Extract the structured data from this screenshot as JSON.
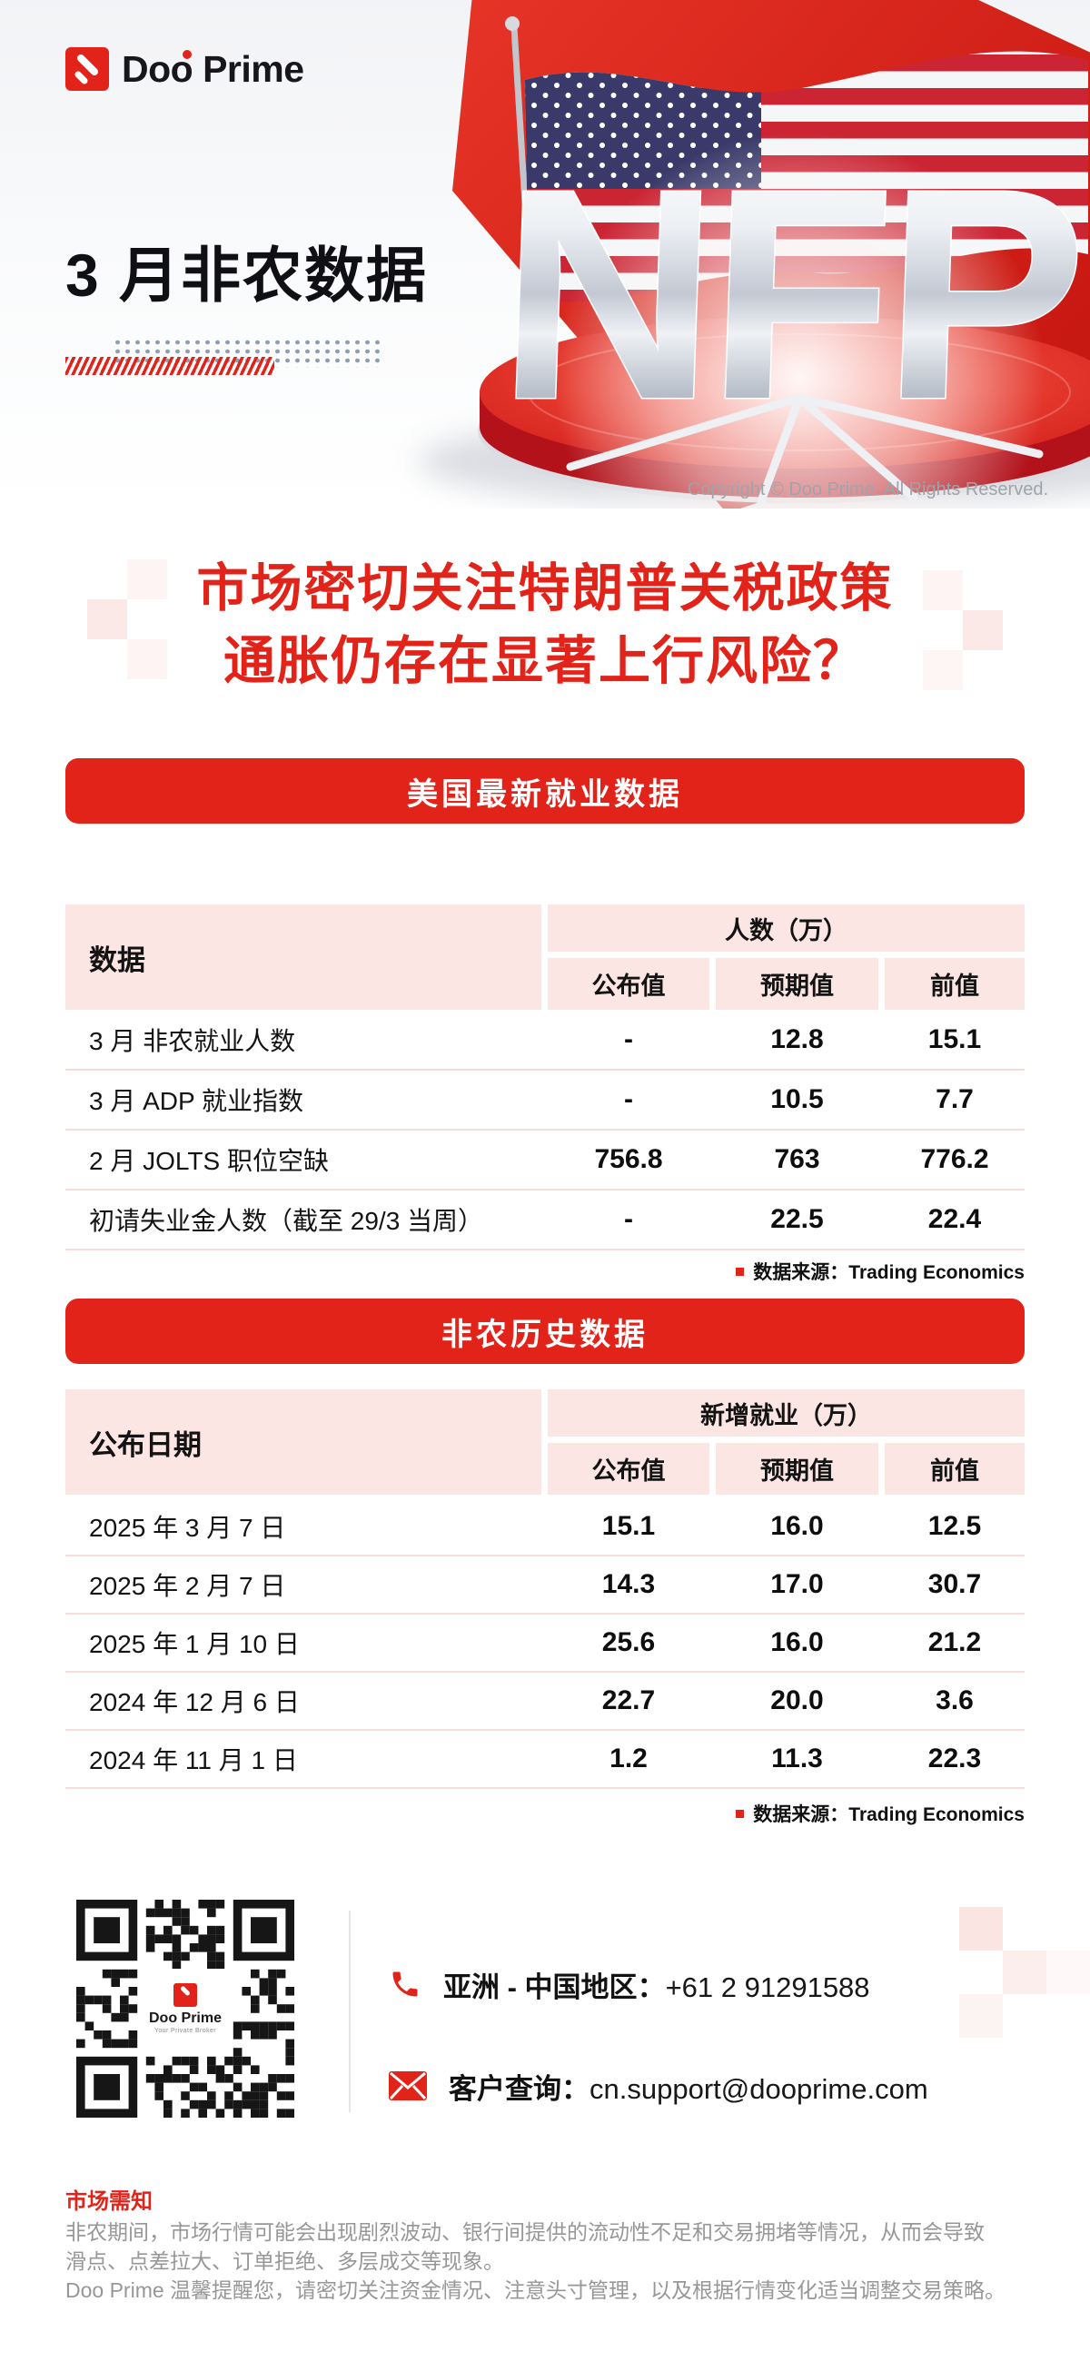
{
  "brand": {
    "logo_text": "Doo Prime",
    "copyright": "Copyright © Doo Prime. All Rights Reserved."
  },
  "hero": {
    "title": "3 月非农数据",
    "nfp_text": "NFP"
  },
  "headline": {
    "line1": "市场密切关注特朗普关税政策",
    "line2": "通胀仍存在显著上行风险？"
  },
  "colors": {
    "brand_red": "#E2231A",
    "table_header_pink": "#FBE6E4"
  },
  "section1": {
    "banner": "美国最新就业数据",
    "table": {
      "col_header_left": "数据",
      "col_group": "人数（万）",
      "sub_headers": [
        "公布值",
        "预期值",
        "前值"
      ],
      "rows": [
        {
          "label": "3 月 非农就业人数",
          "published": "-",
          "expected": "12.8",
          "previous": "15.1"
        },
        {
          "label": "3 月 ADP 就业指数",
          "published": "-",
          "expected": "10.5",
          "previous": "7.7"
        },
        {
          "label": "2 月 JOLTS 职位空缺",
          "published": "756.8",
          "expected": "763",
          "previous": "776.2"
        },
        {
          "label": "初请失业金人数（截至 29/3 当周）",
          "published": "-",
          "expected": "22.5",
          "previous": "22.4"
        }
      ]
    },
    "source": "数据来源：Trading Economics"
  },
  "section2": {
    "banner": "非农历史数据",
    "table": {
      "col_header_left": "公布日期",
      "col_group": "新增就业（万）",
      "sub_headers": [
        "公布值",
        "预期值",
        "前值"
      ],
      "rows": [
        {
          "label": "2025 年 3 月 7 日",
          "published": "15.1",
          "expected": "16.0",
          "previous": "12.5"
        },
        {
          "label": "2025 年 2 月 7 日",
          "published": "14.3",
          "expected": "17.0",
          "previous": "30.7"
        },
        {
          "label": "2025 年 1 月 10 日",
          "published": "25.6",
          "expected": "16.0",
          "previous": "21.2"
        },
        {
          "label": "2024 年 12 月 6 日",
          "published": "22.7",
          "expected": "20.0",
          "previous": "3.6"
        },
        {
          "label": "2024 年 11 月 1 日",
          "published": "1.2",
          "expected": "11.3",
          "previous": "22.3"
        }
      ]
    },
    "source": "数据来源：Trading Economics"
  },
  "contact": {
    "qr_center_title": "Doo Prime",
    "qr_center_subtitle": "Your Private Broker",
    "phone_label": "亚洲 - 中国地区：",
    "phone_value": "+61 2 91291588",
    "email_label": "客户查询：",
    "email_value": "cn.support@dooprime.com"
  },
  "footer": {
    "title": "市场需知",
    "lines": [
      "非农期间，市场行情可能会出现剧烈波动、银行间提供的流动性不足和交易拥堵等情况，从而会导致",
      "滑点、点差拉大、订单拒绝、多层成交等现象。",
      "Doo Prime 温馨提醒您，请密切关注资金情况、注意头寸管理，以及根据行情变化适当调整交易策略。"
    ]
  }
}
